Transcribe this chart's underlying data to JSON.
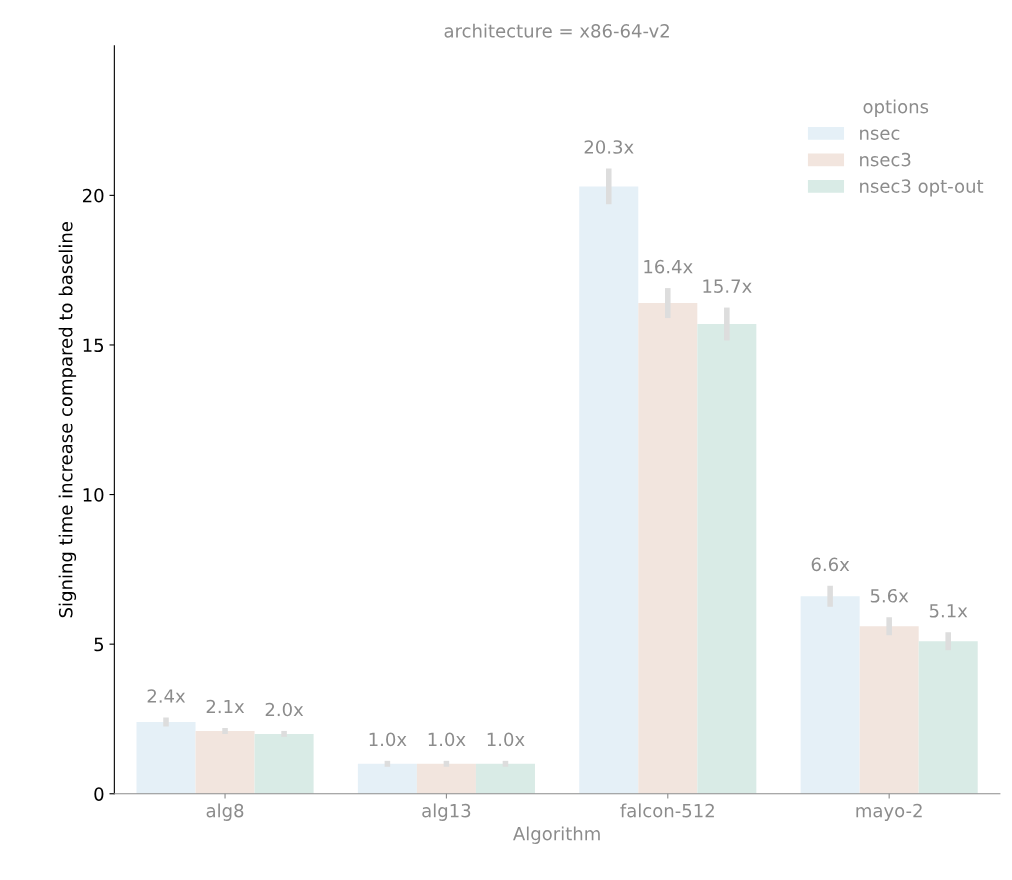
{
  "chart_data": {
    "type": "bar",
    "title": "architecture = x86-64-v2",
    "xlabel": "Algorithm",
    "ylabel": "Signing time increase compared to baseline",
    "legend_title": "options",
    "categories": [
      "alg8",
      "alg13",
      "falcon-512",
      "mayo-2"
    ],
    "series": [
      {
        "name": "nsec",
        "color": "#e5f0f7",
        "values": [
          2.4,
          1.0,
          20.3,
          6.6
        ],
        "errors": [
          0.15,
          0.1,
          0.6,
          0.35
        ],
        "value_labels": [
          "2.4x",
          "1.0x",
          "20.3x",
          "6.6x"
        ]
      },
      {
        "name": "nsec3",
        "color": "#f2e5de",
        "values": [
          2.1,
          1.0,
          16.4,
          5.6
        ],
        "errors": [
          0.1,
          0.1,
          0.5,
          0.3
        ],
        "value_labels": [
          "2.1x",
          "1.0x",
          "16.4x",
          "5.6x"
        ]
      },
      {
        "name": "nsec3 opt-out",
        "color": "#d9ebe6",
        "values": [
          2.0,
          1.0,
          15.7,
          5.1
        ],
        "errors": [
          0.1,
          0.1,
          0.55,
          0.3
        ],
        "value_labels": [
          "2.0x",
          "1.0x",
          "15.7x",
          "5.1x"
        ]
      }
    ],
    "ylim": [
      0,
      25
    ],
    "yticks": [
      0,
      5,
      10,
      15,
      20
    ],
    "grid": false,
    "legend": "top right"
  }
}
